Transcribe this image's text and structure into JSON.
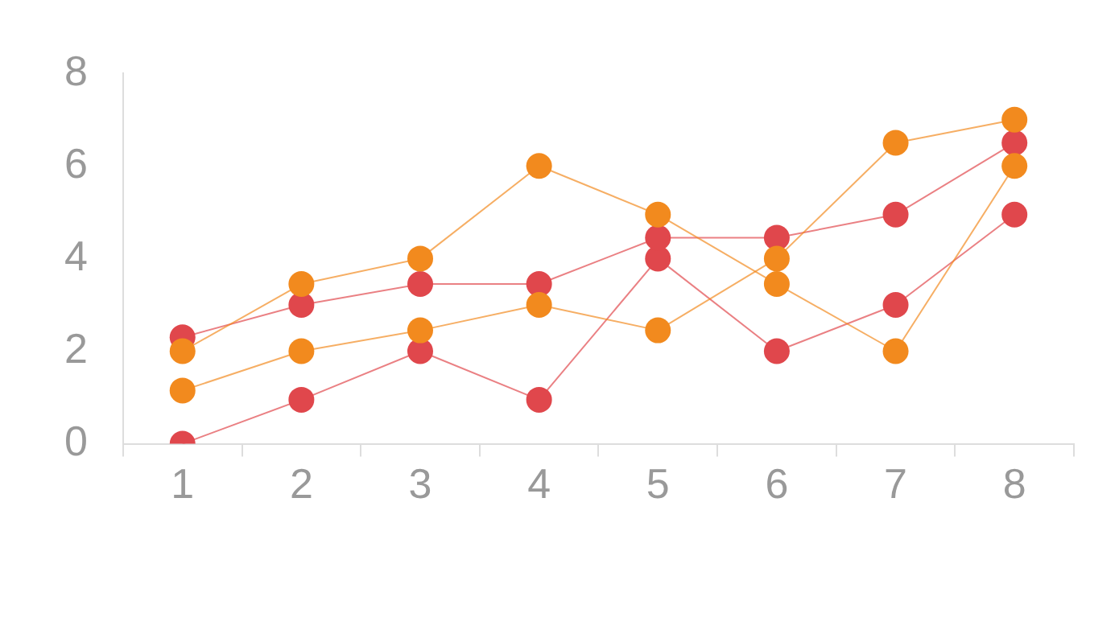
{
  "chart_data": {
    "type": "line",
    "categories": [
      "1",
      "2",
      "3",
      "4",
      "5",
      "6",
      "7",
      "8"
    ],
    "series": [
      {
        "color": "#f28a1e",
        "values": [
          2.0,
          3.45,
          4.0,
          6.0,
          4.95,
          3.45,
          2.0,
          6.0
        ]
      },
      {
        "color": "#f28a1e",
        "values": [
          1.15,
          2.0,
          2.45,
          3.0,
          2.45,
          4.0,
          6.5,
          7.0
        ]
      },
      {
        "color": "#e0474c",
        "values": [
          2.3,
          3.0,
          3.45,
          3.45,
          4.45,
          4.45,
          4.95,
          6.5
        ]
      },
      {
        "color": "#e0474c",
        "values": [
          0,
          0.95,
          2.0,
          0.95,
          4.0,
          2.0,
          3.0,
          4.95
        ]
      }
    ],
    "ylim": [
      0,
      8
    ],
    "yticks": [
      0,
      2,
      4,
      6,
      8
    ],
    "grid": false,
    "legend": false,
    "marker": "circle",
    "line_style": "solid"
  }
}
